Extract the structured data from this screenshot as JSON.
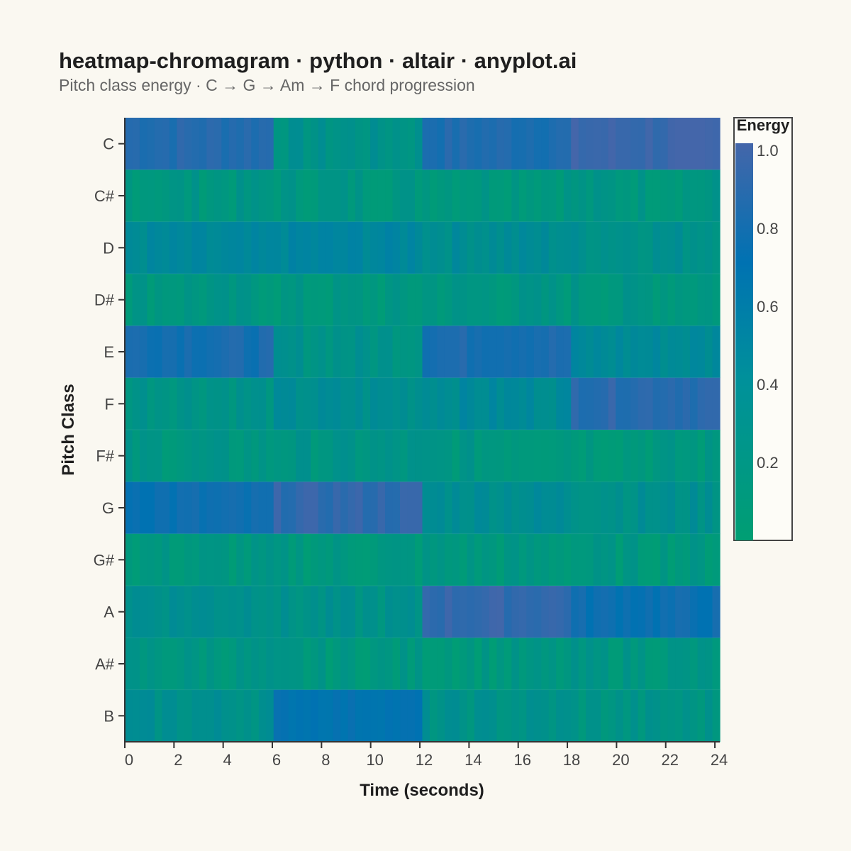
{
  "chart_data": {
    "type": "heatmap",
    "title": "heatmap-chromagram · python · altair · anyplot.ai",
    "subtitle": "Pitch class energy · C → G → Am → F chord progression",
    "xlabel": "Time (seconds)",
    "ylabel": "Pitch Class",
    "xlim": [
      0,
      24.2
    ],
    "x_ticks": [
      "0",
      "2",
      "4",
      "6",
      "8",
      "10",
      "12",
      "14",
      "16",
      "18",
      "20",
      "22",
      "24"
    ],
    "pitch_classes": [
      "C",
      "C#",
      "D",
      "D#",
      "E",
      "F",
      "F#",
      "G",
      "G#",
      "A",
      "A#",
      "B"
    ],
    "segments": [
      {
        "label": "C",
        "start": 0,
        "end": 6.05
      },
      {
        "label": "G",
        "start": 6.05,
        "end": 12.1
      },
      {
        "label": "Am",
        "start": 12.1,
        "end": 18.15
      },
      {
        "label": "F",
        "start": 18.15,
        "end": 24.2
      }
    ],
    "energy_by_segment": {
      "C": [
        0.85,
        0.15,
        0.82,
        0.95
      ],
      "C#": [
        0.1,
        0.1,
        0.1,
        0.1
      ],
      "D": [
        0.25,
        0.3,
        0.22,
        0.18
      ],
      "D#": [
        0.1,
        0.08,
        0.1,
        0.1
      ],
      "E": [
        0.78,
        0.15,
        0.8,
        0.25
      ],
      "F": [
        0.15,
        0.2,
        0.25,
        0.88
      ],
      "F#": [
        0.1,
        0.12,
        0.1,
        0.08
      ],
      "G": [
        0.72,
        0.9,
        0.22,
        0.18
      ],
      "G#": [
        0.08,
        0.08,
        0.08,
        0.08
      ],
      "A": [
        0.2,
        0.15,
        0.92,
        0.72
      ],
      "A#": [
        0.1,
        0.08,
        0.08,
        0.1
      ],
      "B": [
        0.18,
        0.65,
        0.15,
        0.12
      ]
    },
    "frame_step": 0.3025,
    "legend": {
      "title": "Energy",
      "ticks": [
        "1.0",
        "0.8",
        "0.6",
        "0.4",
        "0.2"
      ],
      "tick_values": [
        1.0,
        0.8,
        0.6,
        0.4,
        0.2
      ],
      "domain": [
        0.0,
        1.0
      ],
      "placement": "right"
    },
    "colorscale": [
      "#009E73",
      "#0083A3",
      "#0072B2",
      "#4466AA"
    ],
    "grid": false
  },
  "colors": {
    "background": "#FAF8F1",
    "axis": "#333333",
    "text": "#444444"
  }
}
